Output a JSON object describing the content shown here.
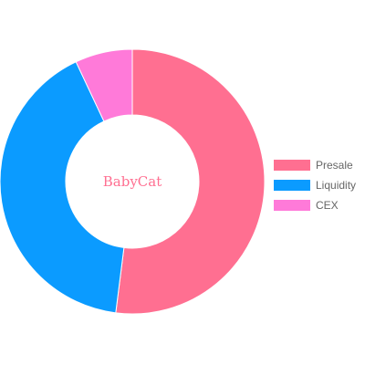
{
  "center_label": "BabyCat",
  "colors": {
    "presale": "#ff6f91",
    "liquidity": "#0b9bff",
    "cex": "#ff7ad9",
    "center_text": "#ff6f91",
    "legend_text": "#666666"
  },
  "chart_data": {
    "type": "pie",
    "variant": "doughnut",
    "categories": [
      "Presale",
      "Liquidity",
      "CEX"
    ],
    "values": [
      52,
      41,
      7
    ],
    "legend_position": "right",
    "title": ""
  },
  "legend": {
    "items": [
      {
        "label": "Presale",
        "color": "#ff6f91"
      },
      {
        "label": "Liquidity",
        "color": "#0b9bff"
      },
      {
        "label": "CEX",
        "color": "#ff7ad9"
      }
    ]
  }
}
